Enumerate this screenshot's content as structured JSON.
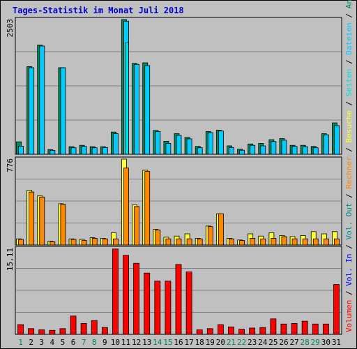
{
  "chart_data": {
    "type": "bar",
    "title": "Tages-Statistik im Monat Juli 2018",
    "categories": [
      "1",
      "2",
      "3",
      "4",
      "5",
      "6",
      "7",
      "8",
      "9",
      "10",
      "11",
      "12",
      "13",
      "14",
      "15",
      "16",
      "17",
      "18",
      "19",
      "20",
      "21",
      "22",
      "23",
      "24",
      "25",
      "26",
      "27",
      "28",
      "29",
      "30",
      "31"
    ],
    "weekend_days": [
      "1",
      "7",
      "8",
      "14",
      "15",
      "21",
      "22",
      "28",
      "29"
    ],
    "colors": {
      "weekday_label": "#000000",
      "weekend_label": "#00805c",
      "anfragen": "#008b5a",
      "dateien": "#00ccff",
      "seiten": "#00e0e0",
      "besuche": "#ffff33",
      "rechner": "#ff8800",
      "volumen": "#ff0000",
      "in": "#0000ff",
      "out": "#008888"
    },
    "panels": [
      {
        "name": "hits",
        "ymax_label": "2503",
        "ylim": [
          0,
          2503
        ],
        "series": [
          {
            "name": "Anfragen",
            "values": [
              230,
              1620,
              2020,
              85,
              1600,
              140,
              165,
              140,
              140,
              410,
              2490,
              1680,
              1690,
              440,
              240,
              380,
              310,
              145,
              420,
              445,
              155,
              95,
              190,
              200,
              270,
              290,
              165,
              165,
              145,
              380,
              580
            ]
          },
          {
            "name": "Dateien",
            "values": [
              150,
              1600,
              2000,
              70,
              1600,
              120,
              145,
              120,
              125,
              380,
              2460,
              1660,
              1640,
              420,
              200,
              350,
              285,
              120,
              400,
              430,
              125,
              75,
              165,
              155,
              235,
              260,
              145,
              140,
              120,
              360,
              530
            ]
          },
          {
            "name": "Seiten",
            "values": [
              0,
              0,
              0,
              0,
              0,
              0,
              0,
              0,
              0,
              0,
              2060,
              0,
              0,
              0,
              0,
              0,
              0,
              0,
              0,
              0,
              0,
              0,
              0,
              0,
              0,
              0,
              0,
              0,
              0,
              0,
              0
            ]
          }
        ]
      },
      {
        "name": "visits",
        "ymax_label": "776",
        "ylim": [
          0,
          776
        ],
        "series": [
          {
            "name": "Besuche",
            "values": [
              55,
              490,
              440,
              35,
              370,
              55,
              50,
              65,
              60,
              110,
              770,
              360,
              670,
              140,
              70,
              80,
              100,
              60,
              170,
              280,
              60,
              45,
              100,
              80,
              110,
              85,
              75,
              85,
              120,
              100,
              120
            ]
          },
          {
            "name": "Rechner",
            "values": [
              50,
              475,
              430,
              30,
              365,
              50,
              40,
              60,
              55,
              55,
              690,
              345,
              660,
              135,
              55,
              55,
              55,
              55,
              165,
              280,
              55,
              40,
              60,
              55,
              60,
              75,
              55,
              55,
              55,
              55,
              55
            ]
          }
        ]
      },
      {
        "name": "volume",
        "ymax_label": "15.11",
        "ylim": [
          0,
          15.11
        ],
        "series": [
          {
            "name": "Volumen",
            "values": [
              1.7,
              1.0,
              0.8,
              0.7,
              1.0,
              3.2,
              1.9,
              2.4,
              1.2,
              14.9,
              13.8,
              12.4,
              10.7,
              9.3,
              9.3,
              12.2,
              10.9,
              0.8,
              1.0,
              1.7,
              1.3,
              0.9,
              1.1,
              1.2,
              2.7,
              1.8,
              1.9,
              2.3,
              1.8,
              1.8,
              8.7
            ]
          }
        ]
      }
    ],
    "side_labels": [
      {
        "text": "Volumen",
        "color": "#ff0000"
      },
      {
        "text": " / ",
        "color": "#000000"
      },
      {
        "text": "Vol. In",
        "color": "#0000ff"
      },
      {
        "text": " / ",
        "color": "#000000"
      },
      {
        "text": "Vol. Out",
        "color": "#008888"
      },
      {
        "text": " / ",
        "color": "#000000"
      },
      {
        "text": "Rechner",
        "color": "#ff8800"
      },
      {
        "text": " / ",
        "color": "#000000"
      },
      {
        "text": "Besuche",
        "color": "#ffff33"
      },
      {
        "text": " / ",
        "color": "#000000"
      },
      {
        "text": "Seiten",
        "color": "#00e0e0"
      },
      {
        "text": " / ",
        "color": "#000000"
      },
      {
        "text": "Dateien",
        "color": "#00ccff"
      },
      {
        "text": " / ",
        "color": "#000000"
      },
      {
        "text": "Anfragen",
        "color": "#008b5a"
      }
    ]
  }
}
